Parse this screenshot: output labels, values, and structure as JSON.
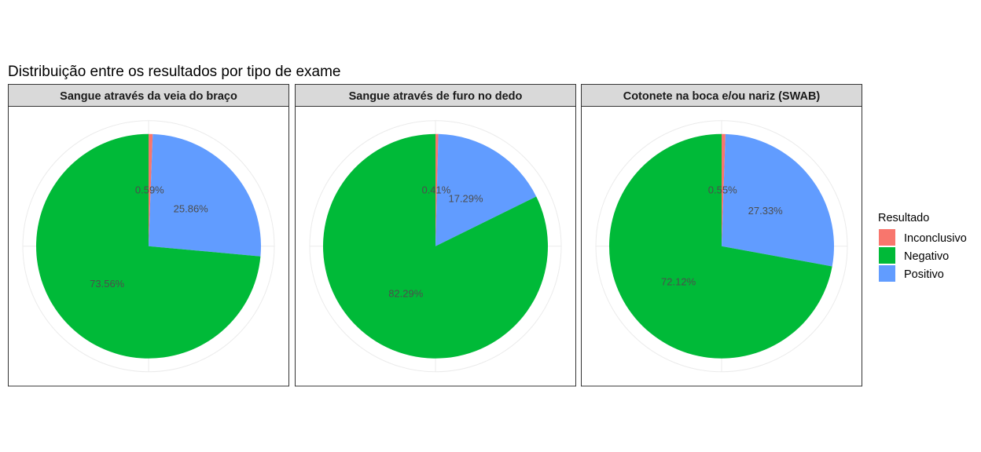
{
  "chart_data": {
    "type": "pie",
    "title": "Distribuição entre os resultados por tipo de exame",
    "legend": {
      "title": "Resultado",
      "position": "right",
      "entries": [
        "Inconclusivo",
        "Negativo",
        "Positivo"
      ]
    },
    "colors": {
      "Inconclusivo": "#F8766D",
      "Negativo": "#00BA38",
      "Positivo": "#619CFF"
    },
    "categories": [
      "Inconclusivo",
      "Positivo",
      "Negativo"
    ],
    "grid": true,
    "panels": [
      {
        "title": "Sangue através da veia do braço",
        "values": [
          0.59,
          25.86,
          73.56
        ],
        "labels": [
          "0.59%",
          "25.86%",
          "73.56%"
        ]
      },
      {
        "title": "Sangue através de furo no dedo",
        "values": [
          0.41,
          17.29,
          82.29
        ],
        "labels": [
          "0.41%",
          "17.29%",
          "82.29%"
        ]
      },
      {
        "title": "Cotonete na boca e/ou nariz (SWAB)",
        "values": [
          0.55,
          27.33,
          72.12
        ],
        "labels": [
          "0.55%",
          "27.33%",
          "72.12%"
        ]
      }
    ]
  }
}
